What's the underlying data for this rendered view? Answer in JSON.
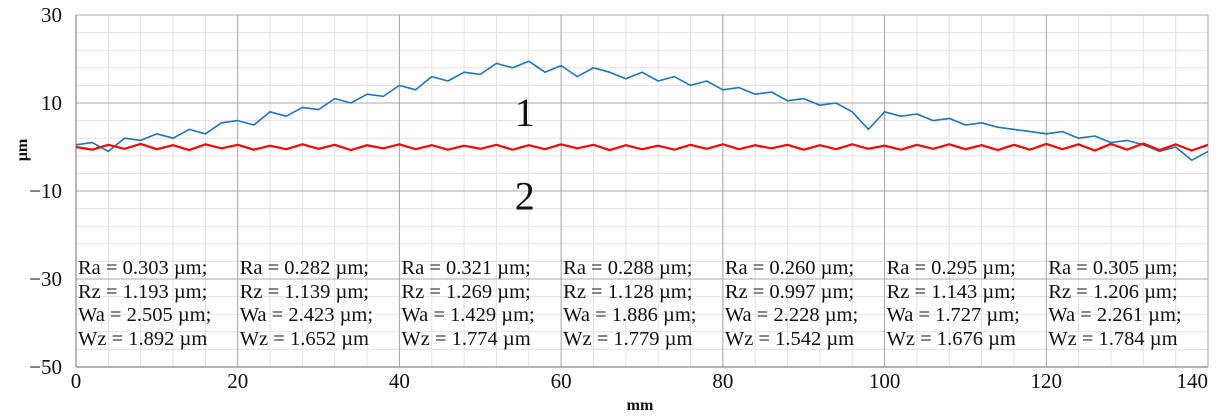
{
  "chart_data": {
    "type": "line",
    "xlabel": "mm",
    "ylabel": "µm",
    "xlim": [
      0,
      140
    ],
    "ylim": [
      -50,
      30
    ],
    "x_ticks": [
      0,
      20,
      40,
      60,
      80,
      100,
      120,
      140
    ],
    "y_ticks": [
      30,
      10,
      -10,
      -30,
      -50
    ],
    "y_tick_labels": [
      "30",
      "10",
      "−10",
      "−30",
      "−50"
    ],
    "grid": true,
    "x_step": 2,
    "series": [
      {
        "name": "1",
        "color": "#1f74c0",
        "values": [
          0.5,
          1,
          -1,
          2,
          1.5,
          3,
          2,
          4,
          3,
          5.5,
          6,
          5,
          8,
          7,
          9,
          8.5,
          11,
          10,
          12,
          11.5,
          14,
          13,
          16,
          15,
          17,
          16.5,
          19,
          18,
          19.5,
          17,
          18.5,
          16,
          18,
          17,
          15.5,
          17,
          15,
          16,
          14,
          15,
          13,
          13.5,
          12,
          12.5,
          10.5,
          11,
          9.5,
          10,
          8,
          4,
          8,
          7,
          7.5,
          6,
          6.5,
          5,
          5.5,
          4.5,
          4,
          3.5,
          3,
          3.5,
          2,
          2.5,
          1,
          1.5,
          0.5,
          -1,
          0,
          -3,
          -1
        ]
      },
      {
        "name": "2",
        "color": "#ff0000",
        "values": [
          0,
          -0.6,
          0.5,
          -0.4,
          0.7,
          -0.5,
          0.4,
          -0.7,
          0.6,
          -0.3,
          0.5,
          -0.6,
          0.3,
          -0.5,
          0.6,
          -0.4,
          0.5,
          -0.7,
          0.4,
          -0.3,
          0.6,
          -0.5,
          0.4,
          -0.6,
          0.3,
          -0.4,
          0.5,
          -0.6,
          0.4,
          -0.5,
          0.6,
          -0.3,
          0.5,
          -0.7,
          0.4,
          -0.5,
          0.3,
          -0.6,
          0.5,
          -0.4,
          0.6,
          -0.5,
          0.4,
          -0.3,
          0.5,
          -0.6,
          0.4,
          -0.5,
          0.6,
          -0.4,
          0.3,
          -0.6,
          0.5,
          -0.4,
          0.6,
          -0.5,
          0.4,
          -0.7,
          0.5,
          -0.6,
          0.7,
          -0.5,
          0.6,
          -0.8,
          0.7,
          -0.6,
          0.8,
          -0.7,
          0.6,
          -0.8,
          0.5
        ]
      }
    ],
    "annotations": [
      {
        "text": "1",
        "x": 55,
        "y": 8
      },
      {
        "text": "2",
        "x": 55,
        "y": -11
      }
    ],
    "stats_table": [
      [
        "Ra = 0.303 µm;",
        "Rz = 1.193 µm;",
        "Wa = 2.505 µm;",
        "Wz = 1.892 µm"
      ],
      [
        "Ra = 0.282 µm;",
        "Rz = 1.139 µm;",
        "Wa = 2.423 µm;",
        "Wz = 1.652 µm"
      ],
      [
        "Ra = 0.321 µm;",
        "Rz = 1.269 µm;",
        "Wa = 1.429 µm;",
        "Wz = 1.774 µm"
      ],
      [
        "Ra = 0.288 µm;",
        "Rz = 1.128 µm;",
        "Wa = 1.886 µm;",
        "Wz = 1.779 µm"
      ],
      [
        "Ra = 0.260 µm;",
        "Rz = 0.997 µm;",
        "Wa = 2.228 µm;",
        "Wz = 1.542 µm"
      ],
      [
        "Ra = 0.295 µm;",
        "Rz = 1.143 µm;",
        "Wa = 1.727 µm;",
        "Wz = 1.676 µm"
      ],
      [
        "Ra = 0.305 µm;",
        "Rz = 1.206 µm;",
        "Wa = 2.261 µm;",
        "Wz = 1.784 µm"
      ]
    ]
  }
}
